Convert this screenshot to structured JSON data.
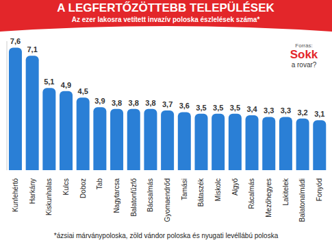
{
  "chart_data": {
    "type": "bar",
    "title": "A LEGFERTŐZÖTTEBB TELEPÜLÉSEK",
    "subtitle": "Az ezer lakosra vetített invazív poloska észlelések száma*",
    "source": [
      "Forrás:",
      "Sokk",
      "a rovar?"
    ],
    "footnote": "*ázsiai márványpoloska, zöld vándor poloska és nyugati levéllábú poloska",
    "categories": [
      "Kunfehértó",
      "Harkány",
      "Kiskunhalas",
      "Kulcs",
      "Doboz",
      "Tab",
      "Nagytarcsa",
      "Balatonfűzfő",
      "Bácsalmás",
      "Gyomaendrőd",
      "Tamási",
      "Bátaszék",
      "Miskolc",
      "Algyő",
      "Rácalmás",
      "Mezőhegyes",
      "Lakitelek",
      "Balatonalmádi",
      "Fonyód"
    ],
    "values": [
      7.6,
      7.1,
      5.1,
      4.9,
      4.5,
      3.9,
      3.8,
      3.8,
      3.8,
      3.7,
      3.6,
      3.5,
      3.5,
      3.5,
      3.4,
      3.3,
      3.3,
      3.2,
      3.1
    ],
    "value_labels": [
      "7,6",
      "7,1",
      "5,1",
      "4,9",
      "4,5",
      "3,9",
      "3,8",
      "3,8",
      "3,8",
      "3,7",
      "3,6",
      "3,5",
      "3,5",
      "3,5",
      "3,4",
      "3,3",
      "3,3",
      "3,2",
      "3,1"
    ],
    "color": "#2a7fd6",
    "ylim": [
      0,
      8
    ],
    "data_labels": true,
    "tick_labels": "x"
  }
}
